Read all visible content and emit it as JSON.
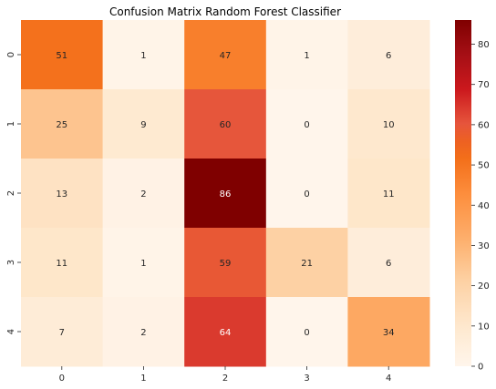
{
  "chart_data": {
    "type": "heatmap",
    "title": "Confusion Matrix Random Forest Classifier",
    "xlabel": "",
    "ylabel": "",
    "x_categories": [
      "0",
      "1",
      "2",
      "3",
      "4"
    ],
    "y_categories": [
      "0",
      "1",
      "2",
      "3",
      "4"
    ],
    "values": [
      [
        51,
        1,
        47,
        1,
        6
      ],
      [
        25,
        9,
        60,
        0,
        10
      ],
      [
        13,
        2,
        86,
        0,
        11
      ],
      [
        11,
        1,
        59,
        21,
        6
      ],
      [
        7,
        2,
        64,
        0,
        34
      ]
    ],
    "colormap": "OrRd-like (Reds)",
    "vmin": 0,
    "vmax": 86,
    "colorbar_ticks": [
      0,
      10,
      20,
      30,
      40,
      50,
      60,
      70,
      80
    ],
    "annotations": true,
    "grid": false
  }
}
